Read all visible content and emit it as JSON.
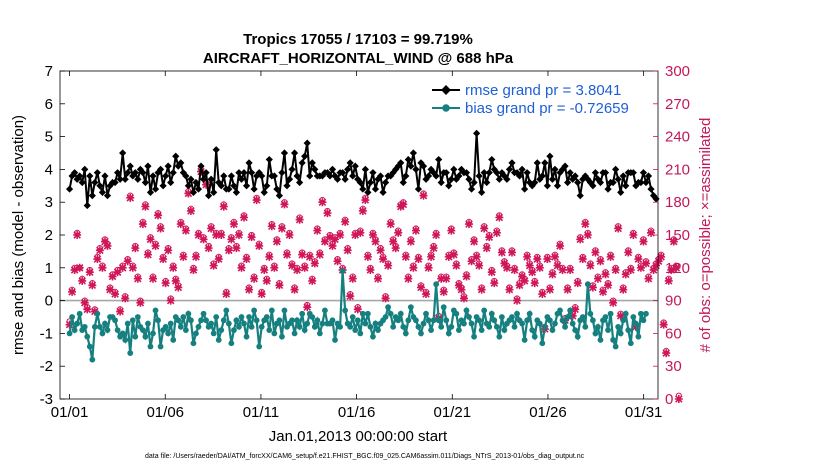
{
  "chart_data": {
    "type": "line",
    "title": "Tropics 17055 / 17103 = 99.719%",
    "subtitle": "AIRCRAFT_HORIZONTAL_WIND @ 688 hPa",
    "xlabel": "Jan.01,2013 00:00:00 start",
    "ylabel": "rmse and bias (model - observation)",
    "ylabel_right": "# of obs: o=possible; ×=assimilated",
    "footer": "data file: /Users/raeder/DAI/ATM_forcXX/CAM6_setup/f.e21.FHIST_BGC.f09_025.CAM6assim.011/Diags_NTrS_2013-01/obs_diag_output.nc",
    "xlim": [
      0.5,
      31.75
    ],
    "ylim": [
      -3,
      7
    ],
    "ylim_right": [
      0,
      300
    ],
    "x_ticks": [
      1,
      6,
      11,
      16,
      21,
      26,
      31
    ],
    "x_tick_labels": [
      "01/01",
      "01/06",
      "01/11",
      "01/16",
      "01/21",
      "01/26",
      "01/31"
    ],
    "y_ticks": [
      -3,
      -2,
      -1,
      0,
      1,
      2,
      3,
      4,
      5,
      6,
      7
    ],
    "y_tick_labels": [
      "-3",
      "-2",
      "-1",
      "0",
      "1",
      "2",
      "3",
      "4",
      "5",
      "6",
      "7"
    ],
    "y_ticks_right": [
      0,
      30,
      60,
      90,
      120,
      150,
      180,
      210,
      240,
      270,
      300
    ],
    "y_tick_labels_right": [
      "0",
      "30",
      "60",
      "90",
      "120",
      "150",
      "180",
      "210",
      "240",
      "270",
      "300"
    ],
    "reference_line": 0,
    "series": [
      {
        "name": "rmse grand pr = 3.8041",
        "color": "#000000",
        "marker": "diamond",
        "values": [
          3.4,
          3.8,
          3.9,
          3.7,
          3.8,
          3.6,
          4.0,
          2.9,
          3.8,
          3.2,
          3.6,
          3.9,
          3.5,
          3.3,
          3.8,
          3.2,
          3.5,
          3.6,
          3.6,
          3.9,
          3.7,
          4.5,
          3.7,
          3.9,
          4.1,
          3.8,
          3.9,
          3.7,
          4.0,
          3.9,
          3.6,
          4.1,
          3.3,
          3.8,
          3.4,
          3.9,
          4.0,
          3.5,
          3.8,
          4.1,
          3.6,
          3.9,
          4.4,
          4.1,
          4.2,
          3.9,
          3.8,
          3.5,
          3.7,
          3.3,
          3.6,
          3.4,
          4.1,
          3.7,
          3.9,
          3.2,
          3.7,
          3.3,
          4.6,
          3.6,
          3.5,
          3.8,
          3.4,
          3.4,
          3.8,
          3.5,
          3.3,
          3.9,
          3.7,
          3.9,
          3.5,
          4.2,
          3.9,
          3.4,
          3.8,
          3.9,
          3.8,
          3.3,
          3.5,
          4.3,
          3.8,
          3.8,
          3.4,
          3.2,
          3.9,
          4.5,
          3.5,
          3.7,
          4.0,
          4.5,
          3.8,
          3.6,
          4.2,
          4.4,
          4.8,
          3.8,
          4.2,
          4.0,
          3.8,
          3.8,
          3.8,
          3.9,
          3.9,
          3.8,
          4.0,
          3.8,
          3.7,
          3.9,
          3.9,
          3.7,
          4.0,
          4.2,
          3.8,
          4.1,
          3.7,
          3.6,
          3.4,
          4.0,
          3.3,
          3.6,
          3.9,
          3.4,
          3.7,
          3.8,
          3.3,
          3.6,
          3.8,
          3.8,
          3.9,
          4.0,
          4.1,
          4.2,
          3.6,
          3.8,
          4.3,
          4.1,
          4.5,
          4.0,
          3.4,
          4.2,
          4.1,
          3.7,
          3.8,
          4.0,
          3.9,
          3.8,
          4.3,
          3.6,
          3.9,
          3.9,
          3.5,
          3.7,
          4.0,
          3.7,
          3.8,
          4.0,
          3.9,
          3.9,
          3.7,
          3.4,
          3.6,
          5.1,
          3.8,
          3.3,
          3.9,
          3.6,
          3.9,
          4.3,
          4.0,
          3.9,
          3.7,
          3.9,
          3.8,
          3.7,
          4.0,
          4.2,
          3.9,
          3.9,
          3.8,
          4.0,
          3.4,
          3.9,
          3.6,
          3.5,
          3.6,
          4.2,
          3.7,
          3.8,
          4.2,
          3.5,
          4.4,
          3.7,
          4.0,
          3.5,
          3.9,
          4.0,
          4.1,
          3.6,
          3.9,
          3.7,
          3.8,
          3.6,
          3.2,
          3.7,
          3.8,
          3.7,
          3.6,
          3.5,
          3.9,
          3.7,
          3.6,
          3.9,
          3.9,
          3.4,
          3.6,
          3.6,
          4.0,
          3.7,
          3.3,
          3.8,
          3.5,
          3.9,
          3.9,
          3.9,
          3.5,
          3.6,
          3.6,
          3.9,
          3.6,
          3.8,
          3.4,
          3.2,
          3.1
        ]
      },
      {
        "name": "bias grand pr = -0.72659",
        "color": "#15807f",
        "marker": "circle",
        "values": [
          -1.0,
          -0.5,
          -0.9,
          -0.7,
          -0.4,
          -0.9,
          -0.8,
          -1.1,
          -1.4,
          -1.8,
          -0.8,
          -0.4,
          -0.8,
          -1.0,
          -0.7,
          -0.9,
          -0.5,
          -0.5,
          -0.6,
          -0.9,
          -1.1,
          -1.0,
          -1.2,
          -0.7,
          -1.6,
          -0.6,
          -1.1,
          -0.5,
          -0.8,
          -0.9,
          -1.1,
          -0.7,
          -1.4,
          -1.0,
          -0.3,
          -0.6,
          -1.4,
          -0.9,
          -0.8,
          -1.0,
          -0.7,
          -1.2,
          -0.5,
          -0.6,
          -0.8,
          -0.5,
          -0.9,
          -0.4,
          -0.6,
          -1.3,
          -1.0,
          -0.8,
          -0.6,
          -0.4,
          -0.6,
          -0.8,
          -0.7,
          -1.0,
          -0.5,
          -1.2,
          -0.9,
          -0.6,
          -0.3,
          -0.7,
          -1.3,
          -0.9,
          -0.6,
          -0.8,
          -0.5,
          -0.7,
          -1.1,
          -0.5,
          -0.8,
          -0.3,
          -0.6,
          -1.4,
          -0.8,
          -0.6,
          -0.5,
          -0.9,
          -0.3,
          -1.0,
          -0.7,
          -0.6,
          -1.1,
          -0.3,
          -0.8,
          -0.7,
          -0.6,
          -1.0,
          -0.6,
          -0.8,
          -0.4,
          -0.9,
          -0.7,
          -0.4,
          -0.5,
          -0.8,
          -0.6,
          -1.0,
          -0.7,
          -0.3,
          -0.7,
          -0.7,
          -0.6,
          -1.2,
          -0.7,
          -0.8,
          0.9,
          -0.3,
          -0.7,
          -0.8,
          -0.5,
          -0.9,
          -0.6,
          -1.0,
          -0.4,
          -0.7,
          -0.4,
          -0.8,
          -1.1,
          -0.7,
          -0.9,
          -0.7,
          -0.6,
          -0.5,
          -0.2,
          -0.4,
          -0.8,
          -0.5,
          -0.6,
          -0.4,
          -0.8,
          -1.0,
          -0.6,
          -0.2,
          -0.5,
          -0.6,
          -0.8,
          -1.0,
          -0.7,
          -0.4,
          -0.6,
          -0.9,
          -0.6,
          0.5,
          -0.6,
          -0.8,
          -0.2,
          -0.6,
          -1.0,
          -0.8,
          -0.3,
          -0.4,
          -0.9,
          -0.6,
          -0.7,
          -0.3,
          -0.5,
          -0.7,
          -1.1,
          -0.5,
          -0.6,
          -0.9,
          -0.3,
          -0.7,
          -0.8,
          -0.4,
          -0.6,
          -0.8,
          -1.1,
          -0.5,
          -0.9,
          -0.7,
          -0.6,
          -0.5,
          -0.8,
          -0.4,
          -0.6,
          -0.7,
          -1.2,
          -0.6,
          -0.4,
          -0.9,
          -1.1,
          -0.6,
          -0.7,
          -1.3,
          -0.8,
          -0.5,
          -0.6,
          -0.9,
          -0.7,
          -0.4,
          -0.3,
          -0.6,
          -0.8,
          -0.5,
          -0.3,
          -0.7,
          -0.9,
          -1.1,
          -0.6,
          -0.5,
          -0.8,
          0.5,
          -0.4,
          -0.6,
          -1.0,
          -0.8,
          -1.2,
          -0.6,
          -0.5,
          -0.9,
          -0.4,
          -1.2,
          -1.4,
          -0.8,
          -1.0,
          -0.6,
          -0.4,
          -0.9,
          -1.3,
          -0.5,
          -0.7,
          -1.1,
          -0.4,
          -0.6,
          -0.4
        ]
      }
    ],
    "obs_assimilated": [
      68,
      98,
      118,
      150,
      120,
      108,
      88,
      82,
      116,
      104,
      80,
      128,
      136,
      120,
      144,
      140,
      100,
      112,
      96,
      116,
      80,
      120,
      92,
      126,
      184,
      120,
      138,
      110,
      88,
      160,
      176,
      132,
      146,
      110,
      140,
      168,
      156,
      128,
      106,
      136,
      90,
      120,
      108,
      102,
      160,
      130,
      154,
      188,
      172,
      118,
      130,
      150,
      208,
      146,
      196,
      138,
      156,
      122,
      150,
      128,
      150,
      176,
      96,
      136,
      146,
      160,
      138,
      150,
      120,
      166,
      128,
      100,
      148,
      110,
      182,
      140,
      96,
      118,
      108,
      130,
      158,
      120,
      144,
      104,
      156,
      178,
      132,
      150,
      122,
      100,
      118,
      164,
      132,
      120,
      84,
      130,
      108,
      124,
      154,
      132,
      180,
      144,
      170,
      148,
      140,
      146,
      126,
      150,
      118,
      162,
      136,
      94,
      110,
      150,
      82,
      152,
      172,
      182,
      130,
      118,
      150,
      144,
      110,
      136,
      128,
      92,
      122,
      160,
      144,
      138,
      152,
      176,
      178,
      130,
      110,
      144,
      120,
      154,
      128,
      102,
      186,
      96,
      120,
      130,
      138,
      150,
      74,
      110,
      98,
      110,
      130,
      154,
      132,
      122,
      104,
      100,
      92,
      112,
      160,
      126,
      144,
      130,
      122,
      100,
      156,
      138,
      148,
      116,
      106,
      152,
      166,
      134,
      124,
      120,
      100,
      134,
      118,
      90,
      104,
      112,
      108,
      130,
      122,
      116,
      106,
      128,
      120,
      96,
      64,
      128,
      100,
      114,
      130,
      122,
      140,
      118,
      72,
      100,
      118,
      76,
      82,
      106,
      146,
      128,
      160,
      150,
      122,
      102,
      134,
      110,
      126,
      98,
      114,
      104,
      130,
      88,
      118,
      156,
      76,
      100,
      114,
      134,
      118,
      150,
      66,
      128,
      120,
      144,
      124,
      110,
      152,
      118,
      122,
      126,
      130,
      68,
      42,
      108,
      118,
      144,
      120,
      0
    ],
    "obs_possible": [
      71,
      100,
      120,
      152,
      120,
      110,
      90,
      84,
      118,
      106,
      82,
      130,
      138,
      122,
      146,
      142,
      102,
      114,
      98,
      118,
      82,
      122,
      94,
      128,
      186,
      122,
      140,
      112,
      90,
      162,
      178,
      134,
      148,
      112,
      142,
      170,
      158,
      130,
      108,
      138,
      92,
      122,
      110,
      104,
      162,
      132,
      156,
      190,
      174,
      120,
      132,
      152,
      210,
      148,
      198,
      140,
      158,
      124,
      152,
      130,
      152,
      178,
      98,
      138,
      148,
      162,
      140,
      152,
      122,
      168,
      130,
      102,
      150,
      112,
      184,
      142,
      98,
      120,
      110,
      132,
      160,
      122,
      146,
      106,
      158,
      180,
      134,
      152,
      124,
      102,
      120,
      166,
      134,
      122,
      86,
      132,
      110,
      126,
      156,
      134,
      182,
      146,
      172,
      150,
      142,
      148,
      128,
      152,
      120,
      164,
      138,
      96,
      112,
      152,
      84,
      154,
      174,
      184,
      132,
      120,
      152,
      146,
      112,
      138,
      130,
      94,
      124,
      162,
      146,
      140,
      154,
      178,
      180,
      132,
      112,
      146,
      122,
      156,
      130,
      104,
      188,
      98,
      122,
      132,
      140,
      152,
      76,
      112,
      100,
      112,
      132,
      156,
      134,
      124,
      106,
      102,
      94,
      114,
      162,
      128,
      146,
      132,
      124,
      102,
      158,
      140,
      150,
      118,
      108,
      154,
      168,
      136,
      126,
      122,
      102,
      136,
      120,
      92,
      106,
      114,
      110,
      132,
      124,
      118,
      108,
      130,
      122,
      98,
      66,
      130,
      102,
      116,
      132,
      124,
      142,
      120,
      74,
      102,
      120,
      78,
      84,
      108,
      148,
      130,
      162,
      152,
      124,
      104,
      136,
      112,
      128,
      100,
      116,
      106,
      132,
      90,
      120,
      158,
      78,
      102,
      116,
      136,
      120,
      152,
      68,
      130,
      122,
      146,
      126,
      112,
      154,
      120,
      124,
      128,
      132,
      70,
      44,
      110,
      120,
      146,
      122,
      3
    ]
  }
}
